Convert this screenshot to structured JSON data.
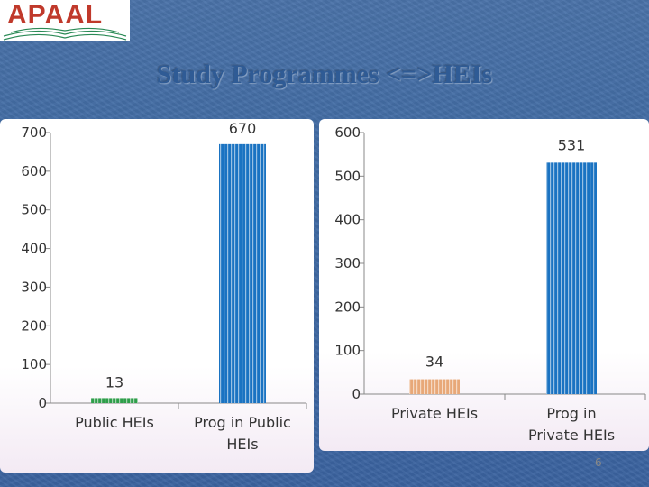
{
  "logo": {
    "text": "APAAL"
  },
  "title": "Study Programmes <=>HEIs",
  "page_number": "6",
  "chart_data": [
    {
      "type": "bar",
      "categories": [
        "Public HEIs",
        "Prog in Public HEIs"
      ],
      "values": [
        13,
        670
      ],
      "ylim": [
        0,
        700
      ],
      "yticks": [
        0,
        100,
        200,
        300,
        400,
        500,
        600,
        700
      ],
      "colors": [
        "#2e9e4a",
        "#1a73c2"
      ],
      "grid": false
    },
    {
      "type": "bar",
      "categories": [
        "Private HEIs",
        "Prog in Private HEIs"
      ],
      "values": [
        34,
        531
      ],
      "ylim": [
        0,
        600
      ],
      "yticks": [
        0,
        100,
        200,
        300,
        400,
        500,
        600
      ],
      "colors": [
        "#e8a878",
        "#1a73c2"
      ],
      "grid": false
    }
  ]
}
